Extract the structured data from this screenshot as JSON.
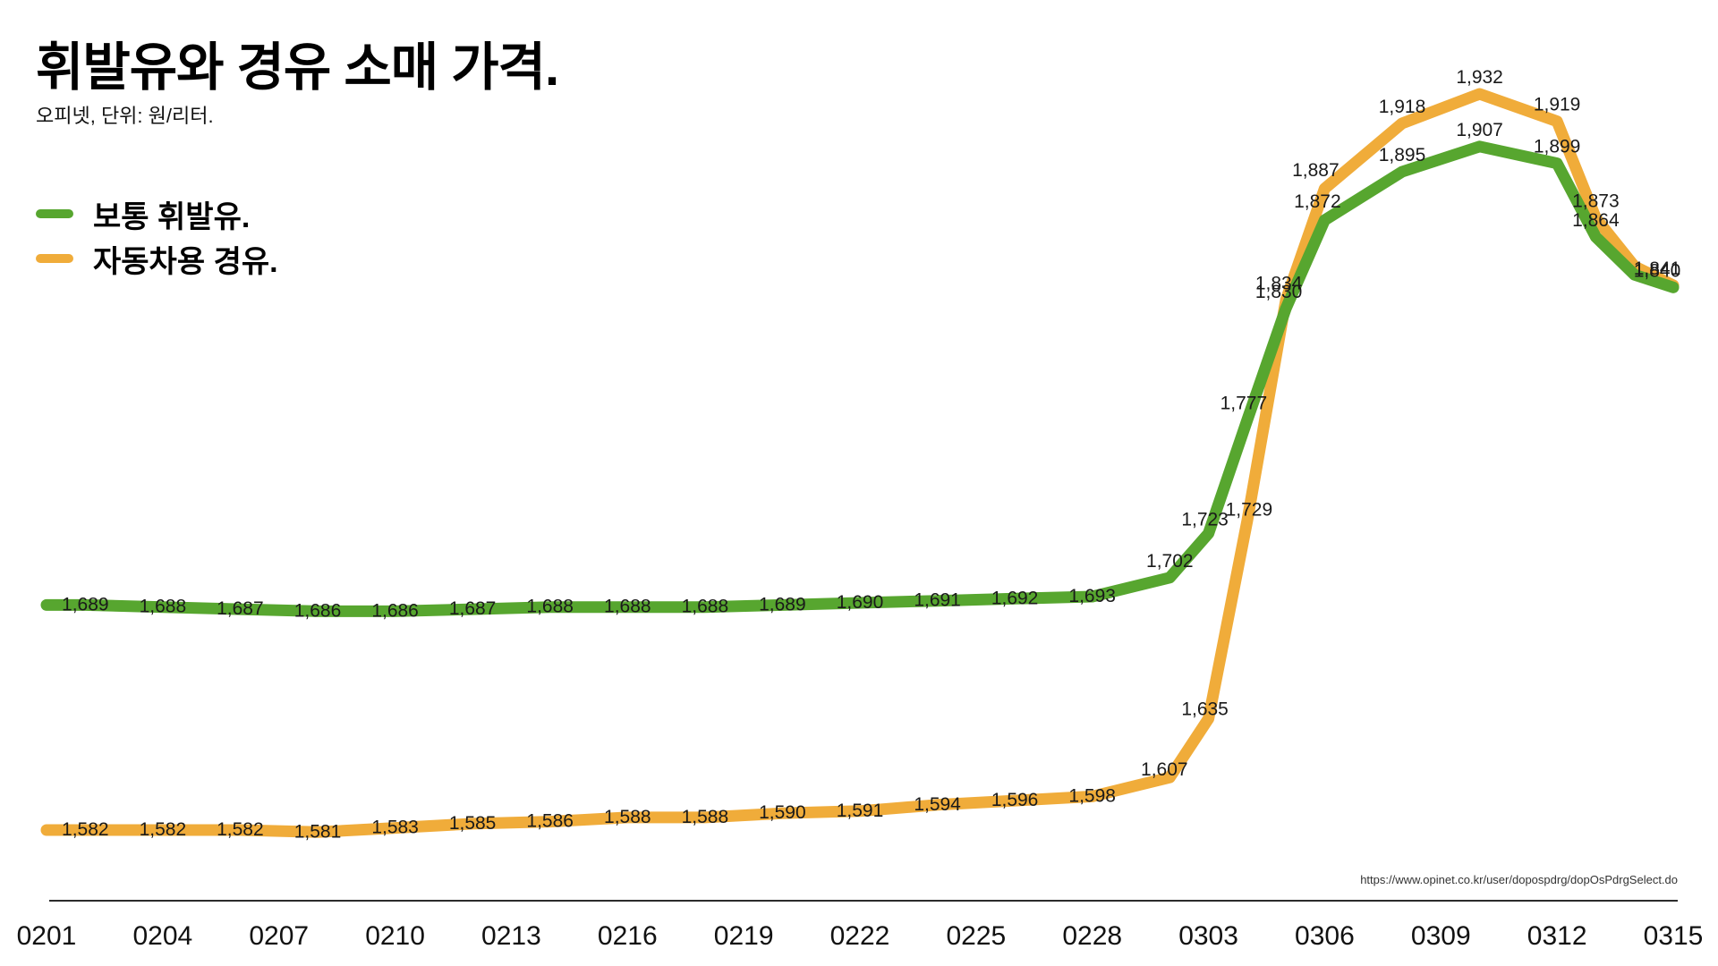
{
  "title": "휘발유와 경유 소매 가격.",
  "subtitle": "오피넷, 단위: 원/리터.",
  "source_url": "https://www.opinet.co.kr/user/dopospdrg/dopOsPdrgSelect.do",
  "colors": {
    "gasoline": "#57a62f",
    "diesel": "#f0ac3a",
    "label_text": "#1a1a1a",
    "axis_text": "#111111"
  },
  "legend": [
    {
      "label": "보통 휘발유.",
      "color": "#57a62f"
    },
    {
      "label": "자동차용 경유.",
      "color": "#f0ac3a"
    }
  ],
  "chart_data": {
    "type": "line",
    "title": "휘발유와 경유 소매 가격",
    "unit": "원/리터",
    "grid": false,
    "legend_position": "top-left",
    "point_labels_shown": true,
    "x_range": [
      "0201",
      "0315"
    ],
    "y_value_range_shown": [
      1581,
      1932
    ],
    "x_axis_ticks": [
      "0201",
      "0204",
      "0207",
      "0210",
      "0213",
      "0216",
      "0219",
      "0222",
      "0225",
      "0228",
      "0303",
      "0306",
      "0309",
      "0312",
      "0315"
    ],
    "x_labeled_dates": [
      "0202",
      "0204",
      "0206",
      "0208",
      "0210",
      "0212",
      "0214",
      "0216",
      "0218",
      "0220",
      "0222",
      "0224",
      "0226",
      "0228",
      "0302",
      "0303",
      "0304",
      "0305",
      "0306",
      "0308",
      "0310",
      "0312",
      "0313",
      "0315"
    ],
    "series": [
      {
        "name": "보통 휘발유",
        "color": "#57a62f",
        "values": [
          1689,
          1688,
          1687,
          1686,
          1686,
          1687,
          1688,
          1688,
          1688,
          1689,
          1690,
          1691,
          1692,
          1693,
          1702,
          1723,
          1777,
          1830,
          1872,
          1895,
          1907,
          1899,
          1864,
          1840
        ]
      },
      {
        "name": "자동차용 경유",
        "color": "#f0ac3a",
        "values": [
          1582,
          1582,
          1582,
          1581,
          1583,
          1585,
          1586,
          1588,
          1588,
          1590,
          1591,
          1594,
          1596,
          1598,
          1607,
          1635,
          1729,
          1834,
          1887,
          1918,
          1932,
          1919,
          1873,
          1841
        ]
      }
    ],
    "line_start_points": [
      {
        "series_index": 0,
        "date": "0201",
        "value": 1689
      },
      {
        "series_index": 1,
        "date": "0201",
        "value": 1582
      }
    ],
    "estimated_bend_points": [
      {
        "series_index": 0,
        "date": "0314",
        "value": 1846,
        "estimated": true
      },
      {
        "series_index": 1,
        "date": "0314",
        "value": 1850,
        "estimated": true
      }
    ]
  }
}
